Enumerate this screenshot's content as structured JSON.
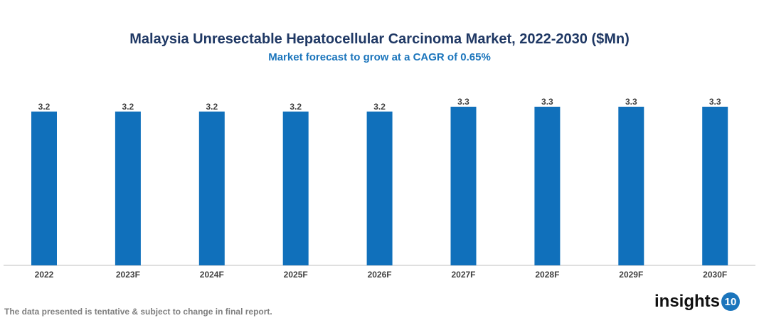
{
  "chart_data": {
    "type": "bar",
    "title": "Malaysia Unresectable Hepatocellular Carcinoma Market, 2022-2030 ($Mn)",
    "subtitle": "Market forecast to grow at a CAGR of 0.65%",
    "categories": [
      "2022",
      "2023F",
      "2024F",
      "2025F",
      "2026F",
      "2027F",
      "2028F",
      "2029F",
      "2030F"
    ],
    "values": [
      3.2,
      3.2,
      3.2,
      3.2,
      3.2,
      3.3,
      3.3,
      3.3,
      3.3
    ],
    "data_labels": [
      "3.2",
      "3.2",
      "3.2",
      "3.2",
      "3.2",
      "3.3",
      "3.3",
      "3.3",
      "3.3"
    ],
    "xlabel": "",
    "ylabel": "",
    "ylim": [
      0,
      3.3
    ],
    "grid": false,
    "bar_color": "#1070bb"
  },
  "footer": {
    "note": "The data presented is tentative & subject to change in final report.",
    "logo_text": "insights",
    "logo_badge": "10"
  }
}
